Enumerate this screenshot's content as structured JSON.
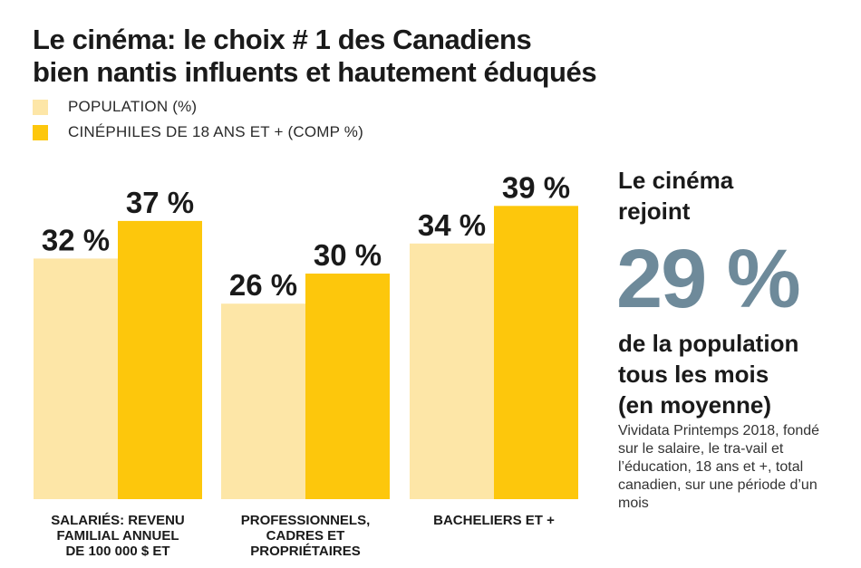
{
  "title": {
    "line1": "Le cinéma: le choix # 1 des Canadiens",
    "line2": "bien nantis influents et hautement éduqués"
  },
  "legend": [
    {
      "label": "POPULATION (%)",
      "color": "#fde6a7"
    },
    {
      "label": "CINÉPHILES DE 18 ANS ET + (COMP %)",
      "color": "#fdc70c"
    }
  ],
  "chart_data": {
    "type": "bar",
    "categories": [
      [
        "SALARIÉS: REVENU",
        "FAMILIAL ANNUEL",
        "DE 100 000 $ ET"
      ],
      [
        "PROFESSIONNELS,",
        "CADRES ET",
        "PROPRIÉTAIRES"
      ],
      [
        "BACHELIERS ET +"
      ]
    ],
    "series": [
      {
        "name": "POPULATION (%)",
        "values": [
          32,
          26,
          34
        ],
        "labels": [
          "32 %",
          "26 %",
          "34 %"
        ],
        "color": "#fde6a7"
      },
      {
        "name": "CINÉPHILES DE 18 ANS ET + (COMP %)",
        "values": [
          37,
          30,
          39
        ],
        "labels": [
          "37 %",
          "30 %",
          "39 %"
        ],
        "color": "#fdc70c"
      }
    ],
    "ylim": [
      0,
      40
    ],
    "grid": false,
    "legend_position": "top-left"
  },
  "side": {
    "line1": "Le cinéma",
    "line2": "rejoint",
    "big_value": "29 %",
    "line3": "de la population",
    "line4": "tous les mois",
    "line5": "(en moyenne)",
    "note": "Vividata Printemps 2018, fondé sur le salaire, le tra-vail et l’éducation, 18 ans et +, total canadien, sur une période d’un mois",
    "accent_color": "#6e8a9a"
  }
}
